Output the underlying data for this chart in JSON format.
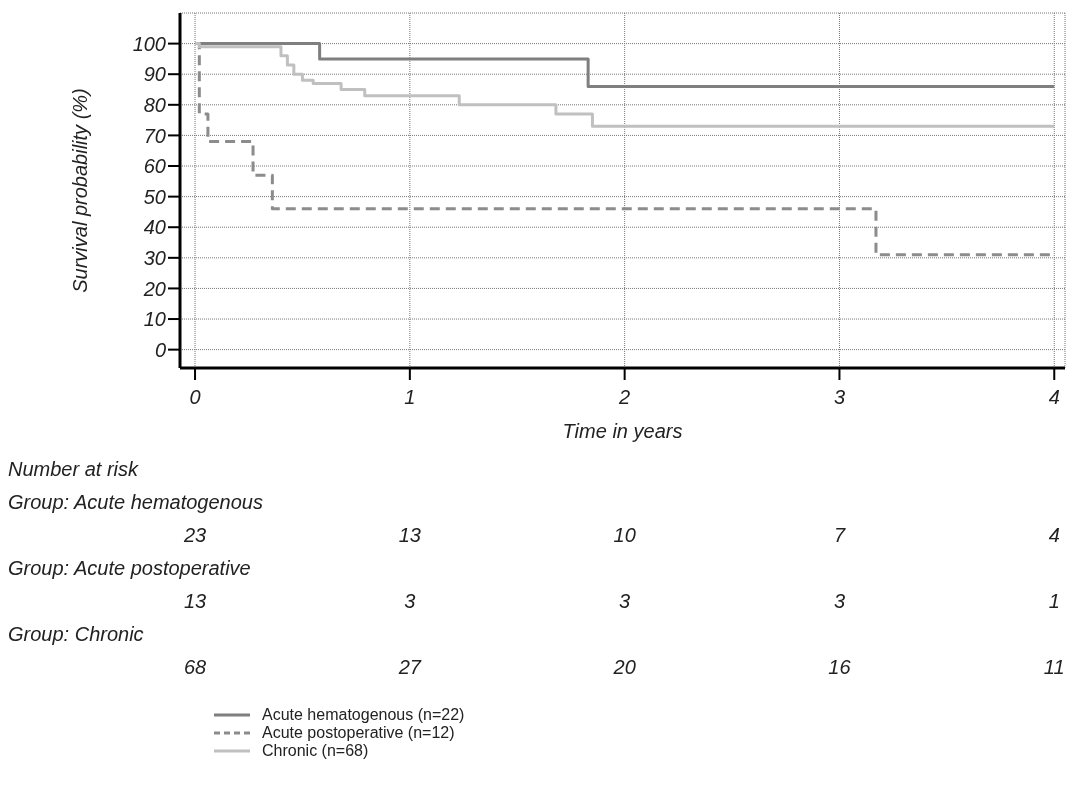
{
  "chart_data": {
    "type": "step",
    "xlabel": "Time in years",
    "ylabel": "Survival probability  (%)",
    "xlim": [
      -0.07,
      4.05
    ],
    "xticks": [
      0,
      1,
      2,
      3,
      4
    ],
    "ylim": [
      -6,
      110
    ],
    "yticks": [
      0,
      10,
      20,
      30,
      40,
      50,
      60,
      70,
      80,
      90,
      100
    ],
    "grid": true,
    "legend": "bottom",
    "series": [
      {
        "name": "Acute hematogenous (n=22)",
        "color": "#7f7f7f",
        "line_style": "solid",
        "x": [
          0,
          0.58,
          1.83,
          4
        ],
        "values": [
          100,
          95,
          86,
          86
        ]
      },
      {
        "name": "Acute postoperative (n=12)",
        "color": "#8c8c8c",
        "line_style": "dashed",
        "x": [
          0,
          0.02,
          0.06,
          0.27,
          0.36,
          3.17,
          4
        ],
        "values": [
          100,
          77,
          68,
          57,
          46,
          31,
          31
        ]
      },
      {
        "name": "Chronic (n=68)",
        "color": "#c0c0c0",
        "line_style": "solid",
        "x": [
          0,
          0.02,
          0.4,
          0.43,
          0.46,
          0.5,
          0.55,
          0.68,
          0.79,
          1.23,
          1.68,
          1.85,
          4
        ],
        "values": [
          100,
          99,
          96,
          93,
          90,
          88,
          87,
          85,
          83,
          80,
          77,
          73,
          73
        ]
      }
    ],
    "annotations": [
      "Number at risk",
      "Group: Acute hematogenous",
      "23",
      "13",
      "10",
      "7",
      "4",
      "Group: Acute postoperative",
      "13",
      "3",
      "3",
      "3",
      "1",
      "Group: Chronic",
      "68",
      "27",
      "20",
      "16",
      "11"
    ]
  }
}
